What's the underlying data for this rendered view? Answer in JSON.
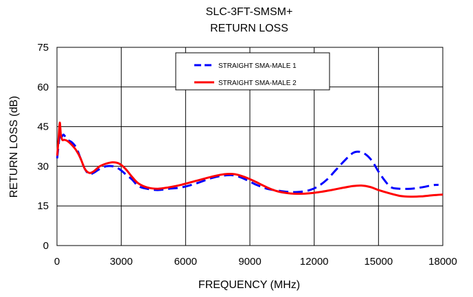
{
  "chart_data": {
    "type": "line",
    "title_lines": [
      "SLC-3FT-SMSM+",
      "RETURN LOSS"
    ],
    "xlabel": "FREQUENCY (MHz)",
    "ylabel": "RETURN LOSS (dB)",
    "xlim": [
      0,
      18000
    ],
    "ylim": [
      0,
      75
    ],
    "xticks": [
      0,
      3000,
      6000,
      9000,
      12000,
      15000,
      18000
    ],
    "yticks": [
      0,
      15,
      30,
      45,
      60,
      75
    ],
    "xtick_labels": [
      "0",
      "3000",
      "6000",
      "9000",
      "12000",
      "15000",
      "18000"
    ],
    "ytick_labels": [
      "0",
      "15",
      "30",
      "45",
      "60",
      "75"
    ],
    "grid": true,
    "legend_position": "top-center",
    "series": [
      {
        "name": "STRAIGHT SMA-MALE 1",
        "color": "#0000ff",
        "style": "dashed",
        "x": [
          10,
          100,
          150,
          200,
          300,
          400,
          500,
          700,
          900,
          1100,
          1300,
          1500,
          1700,
          2000,
          2300,
          2600,
          2900,
          3200,
          3500,
          3800,
          4200,
          4700,
          5200,
          5800,
          6500,
          7200,
          7800,
          8300,
          8800,
          9300,
          9800,
          10300,
          10800,
          11300,
          11800,
          12200,
          12600,
          13000,
          13400,
          13800,
          14100,
          14400,
          14700,
          15000,
          15300,
          15600,
          16000,
          16500,
          17000,
          17500,
          17800
        ],
        "y": [
          33,
          40,
          43,
          41,
          42,
          41,
          40,
          39,
          37,
          33,
          29,
          27,
          27.5,
          29,
          30,
          30,
          29,
          27,
          25,
          22.5,
          21.5,
          21,
          21.5,
          22,
          23.5,
          25.5,
          26.5,
          26.5,
          25,
          23,
          21.5,
          20.8,
          20.3,
          20.3,
          21,
          22.5,
          25,
          28.5,
          32,
          35,
          35.5,
          34.5,
          32,
          28,
          24.5,
          22,
          21.5,
          21.5,
          22,
          22.8,
          23
        ]
      },
      {
        "name": "STRAIGHT SMA-MALE 2",
        "color": "#ff0000",
        "style": "solid",
        "x": [
          10,
          80,
          130,
          180,
          250,
          350,
          500,
          700,
          900,
          1100,
          1300,
          1500,
          1700,
          2000,
          2300,
          2600,
          2900,
          3200,
          3500,
          3800,
          4200,
          4700,
          5200,
          5800,
          6500,
          7200,
          7800,
          8300,
          8800,
          9300,
          9800,
          10300,
          10800,
          11300,
          11800,
          12300,
          12800,
          13300,
          13800,
          14200,
          14600,
          15000,
          15500,
          16000,
          16500,
          17000,
          17500,
          18000
        ],
        "y": [
          34,
          41,
          46.5,
          42,
          40,
          40,
          39.5,
          38,
          36,
          33,
          29,
          27.5,
          28,
          30,
          31,
          31.5,
          31,
          29,
          26,
          23.5,
          22,
          21.5,
          22,
          23,
          24.5,
          26,
          27,
          27,
          25.8,
          24,
          22,
          20.5,
          19.8,
          19.6,
          19.8,
          20.3,
          21,
          21.8,
          22.5,
          22.7,
          22.2,
          21,
          19.8,
          18.8,
          18.5,
          18.6,
          19,
          19.3
        ]
      }
    ]
  }
}
